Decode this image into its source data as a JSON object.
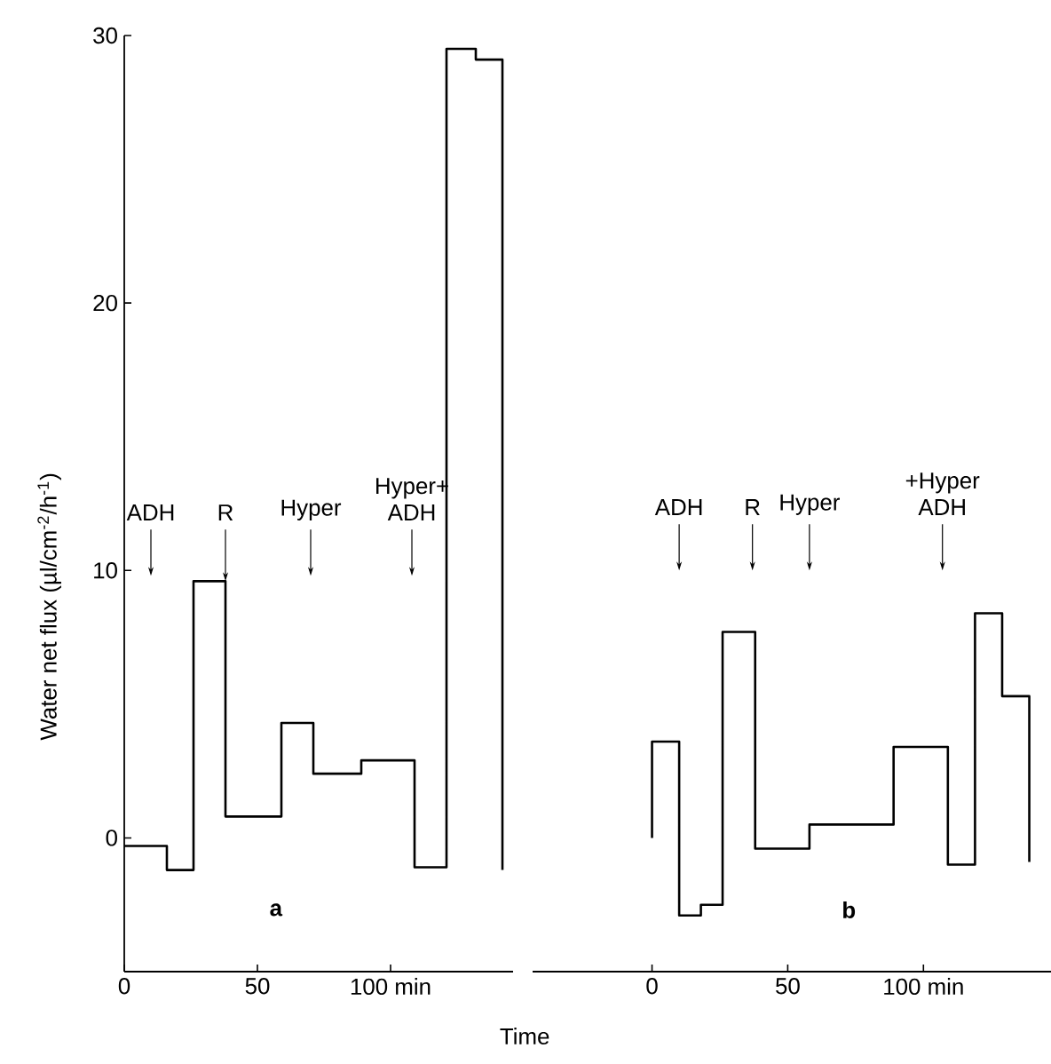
{
  "chart_data": [
    {
      "type": "step",
      "color": "#000000",
      "xlabel": "Time",
      "ylabel": "Water net flux (µl/cm$^{-2}$/h$^{-1}$)",
      "x": [
        0,
        16,
        26,
        38,
        59,
        71,
        89,
        109,
        121,
        132,
        142
      ],
      "values": [
        -0.3,
        -1.2,
        9.6,
        0.8,
        4.3,
        2.4,
        2.9,
        -1.1,
        29.5,
        29.1,
        -1.2
      ],
      "xlim": [
        0,
        146
      ],
      "ylim": [
        -5,
        30
      ],
      "xticks": [
        0,
        50,
        {
          "value": 100,
          "label": "100 min"
        }
      ],
      "yticks": [
        0,
        10,
        20,
        30
      ],
      "annotations": [
        "ADH",
        {
          "text": "R",
          "x": 38,
          "y": 9.6
        },
        "Hyper",
        "Hyper+ ADH",
        "a"
      ]
    },
    {
      "type": "step",
      "color": "#000000",
      "x": [
        0,
        0,
        10,
        18,
        26,
        38,
        58,
        89,
        109,
        119,
        129,
        139
      ],
      "values": [
        0.0,
        3.6,
        -2.9,
        -2.5,
        7.7,
        -0.4,
        0.5,
        3.4,
        -1.0,
        8.4,
        5.3,
        -0.9
      ],
      "xlim": [
        -44,
        147
      ],
      "ylim": [
        -5,
        30
      ],
      "xticks": [
        0,
        50,
        {
          "value": 100,
          "label": "100 min"
        }
      ],
      "yticks": [
        0,
        10,
        20,
        30
      ],
      "tick_labels": "x",
      "annotations": [
        "+Hyper ADH",
        "ADH",
        "R",
        "Hyper",
        "b"
      ]
    }
  ]
}
